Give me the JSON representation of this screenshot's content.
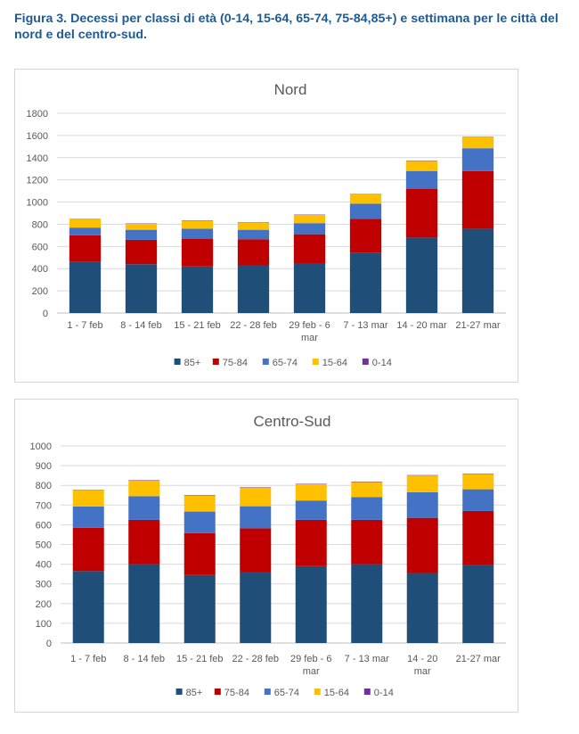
{
  "figure": {
    "caption": "Figura 3. Decessi per classi di età (0-14, 15-64, 65-74, 75-84,85+) e settimana per le città del nord e del centro-sud."
  },
  "colors": {
    "85+": "#1f4e79",
    "75-84": "#c00000",
    "65-74": "#4472c4",
    "15-64": "#ffc000",
    "0-14": "#7030a0",
    "grid": "#d9d9d9",
    "axis": "#bfbfbf"
  },
  "chart_data": [
    {
      "type": "bar",
      "stacked": true,
      "title": "Nord",
      "categories": [
        [
          "1 - 7 feb"
        ],
        [
          "8 - 14 feb"
        ],
        [
          "15 - 21 feb"
        ],
        [
          "22 - 28 feb"
        ],
        [
          "29 feb - 6",
          "mar"
        ],
        [
          "7 - 13 mar"
        ],
        [
          "14 - 20 mar"
        ],
        [
          "21-27 mar"
        ]
      ],
      "ylim": [
        0,
        1800
      ],
      "yticks": [
        0,
        200,
        400,
        600,
        800,
        1000,
        1200,
        1400,
        1600,
        1800
      ],
      "grid": true,
      "legend_position": "bottom",
      "series": [
        {
          "name": "85+",
          "values": [
            460,
            440,
            420,
            430,
            450,
            545,
            680,
            760
          ]
        },
        {
          "name": "75-84",
          "values": [
            240,
            220,
            250,
            235,
            260,
            305,
            440,
            520
          ]
        },
        {
          "name": "65-74",
          "values": [
            70,
            90,
            90,
            85,
            100,
            135,
            160,
            205
          ]
        },
        {
          "name": "15-64",
          "values": [
            75,
            55,
            72,
            65,
            75,
            85,
            90,
            100
          ]
        },
        {
          "name": "0-14",
          "values": [
            3,
            3,
            3,
            3,
            3,
            3,
            3,
            3
          ]
        }
      ]
    },
    {
      "type": "bar",
      "stacked": true,
      "title": "Centro-Sud",
      "categories": [
        [
          "1 - 7 feb"
        ],
        [
          "8 - 14 feb"
        ],
        [
          "15 - 21 feb"
        ],
        [
          "22 - 28 feb"
        ],
        [
          "29 feb - 6",
          "mar"
        ],
        [
          "7 - 13 mar"
        ],
        [
          "14 - 20",
          "mar"
        ],
        [
          "21-27 mar"
        ]
      ],
      "ylim": [
        0,
        1000
      ],
      "yticks": [
        0,
        100,
        200,
        300,
        400,
        500,
        600,
        700,
        800,
        900,
        1000
      ],
      "grid": true,
      "legend_position": "bottom",
      "series": [
        {
          "name": "85+",
          "values": [
            365,
            400,
            345,
            362,
            390,
            400,
            355,
            398
          ]
        },
        {
          "name": "75-84",
          "values": [
            220,
            225,
            212,
            220,
            235,
            225,
            280,
            272
          ]
        },
        {
          "name": "65-74",
          "values": [
            108,
            120,
            110,
            112,
            98,
            115,
            130,
            110
          ]
        },
        {
          "name": "15-64",
          "values": [
            82,
            80,
            82,
            95,
            83,
            77,
            85,
            78
          ]
        },
        {
          "name": "0-14",
          "values": [
            2,
            2,
            2,
            2,
            2,
            2,
            2,
            2
          ]
        }
      ]
    }
  ]
}
